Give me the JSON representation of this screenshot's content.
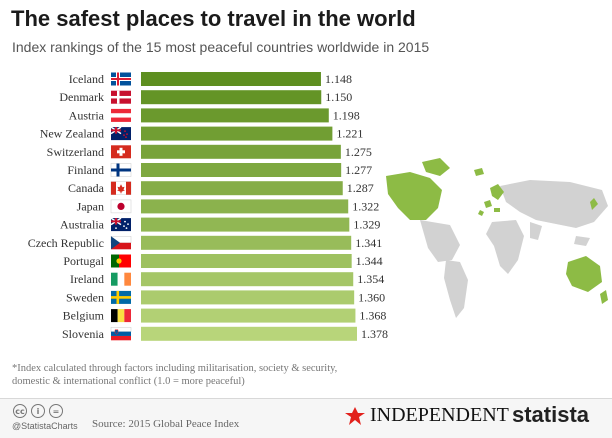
{
  "title": "The safest places to travel in the world",
  "subtitle": "Index rankings of the 15 most peaceful countries worldwide in 2015",
  "footnote": "*Index calculated through factors including militarisation, society & security, domestic & international conflict (1.0 = more peaceful)",
  "footer": {
    "handle": "@StatistaCharts",
    "source": "Source: 2015 Global Peace Index",
    "cc_icons": [
      "cc",
      "i",
      "="
    ],
    "publisher": "INDEPENDENT",
    "brand": "statista"
  },
  "colors": {
    "bar_dark": "#5e8f20",
    "bar_light": "#b8d57a",
    "map_highlight": "#8dbb45",
    "map_other": "#d2d2d2"
  },
  "chart_data": {
    "type": "bar",
    "orientation": "horizontal",
    "categories": [
      "Iceland",
      "Denmark",
      "Austria",
      "New Zealand",
      "Switzerland",
      "Finland",
      "Canada",
      "Japan",
      "Australia",
      "Czech Republic",
      "Portugal",
      "Ireland",
      "Sweden",
      "Belgium",
      "Slovenia"
    ],
    "values": [
      1.148,
      1.15,
      1.198,
      1.221,
      1.275,
      1.277,
      1.287,
      1.322,
      1.329,
      1.341,
      1.344,
      1.354,
      1.36,
      1.368,
      1.378
    ],
    "labels": [
      "1.148",
      "1.150",
      "1.198",
      "1.221",
      "1.275",
      "1.277",
      "1.287",
      "1.322",
      "1.329",
      "1.341",
      "1.344",
      "1.354",
      "1.360",
      "1.368",
      "1.378"
    ],
    "flags": [
      "iceland-flag-icon",
      "denmark-flag-icon",
      "austria-flag-icon",
      "new-zealand-flag-icon",
      "switzerland-flag-icon",
      "finland-flag-icon",
      "canada-flag-icon",
      "japan-flag-icon",
      "australia-flag-icon",
      "czech-republic-flag-icon",
      "portugal-flag-icon",
      "ireland-flag-icon",
      "sweden-flag-icon",
      "belgium-flag-icon",
      "slovenia-flag-icon"
    ],
    "xlim": [
      0,
      1.378
    ],
    "grid": false,
    "legend": "none"
  }
}
